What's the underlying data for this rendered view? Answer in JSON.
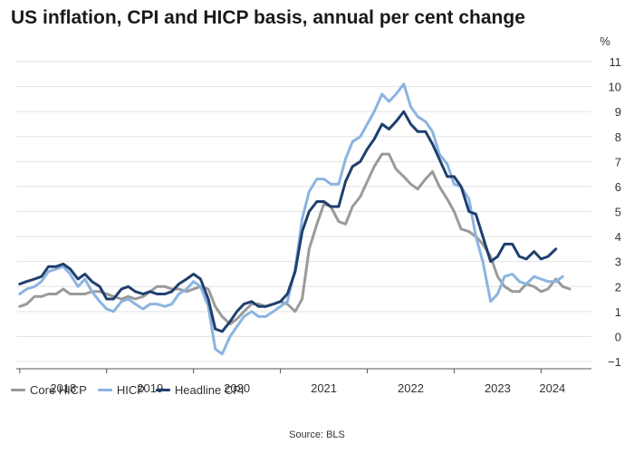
{
  "title": "US inflation, CPI and HICP basis, annual per cent change",
  "source": "Source: BLS",
  "chart_data": {
    "type": "line",
    "title": "US inflation, CPI and HICP basis, annual per cent change",
    "ylabel": "%",
    "xlabel": "",
    "ylim": [
      -1,
      11
    ],
    "yticks": [
      11,
      10,
      9,
      8,
      7,
      6,
      5,
      4,
      3,
      2,
      1,
      0,
      -1
    ],
    "xlim": [
      2017.96,
      2024.58
    ],
    "xticks": [
      {
        "label": "2018",
        "x": 2018.5
      },
      {
        "label": "2019",
        "x": 2019.5
      },
      {
        "label": "2020",
        "x": 2020.5
      },
      {
        "label": "2021",
        "x": 2021.5
      },
      {
        "label": "2022",
        "x": 2022.5
      },
      {
        "label": "2023",
        "x": 2023.5
      },
      {
        "label": "2024",
        "x": 2024.13
      }
    ],
    "grid": true,
    "legend_position": "bottom-left",
    "series": [
      {
        "name": "Core HICP",
        "color": "#9a9a9a",
        "points": [
          [
            2018.0,
            1.2
          ],
          [
            2018.08,
            1.3
          ],
          [
            2018.17,
            1.6
          ],
          [
            2018.25,
            1.6
          ],
          [
            2018.33,
            1.7
          ],
          [
            2018.42,
            1.7
          ],
          [
            2018.5,
            1.9
          ],
          [
            2018.58,
            1.7
          ],
          [
            2018.67,
            1.7
          ],
          [
            2018.75,
            1.7
          ],
          [
            2018.83,
            1.8
          ],
          [
            2018.92,
            1.8
          ],
          [
            2019.0,
            1.7
          ],
          [
            2019.08,
            1.6
          ],
          [
            2019.17,
            1.5
          ],
          [
            2019.25,
            1.6
          ],
          [
            2019.33,
            1.5
          ],
          [
            2019.42,
            1.6
          ],
          [
            2019.5,
            1.8
          ],
          [
            2019.58,
            2.0
          ],
          [
            2019.67,
            2.0
          ],
          [
            2019.75,
            1.9
          ],
          [
            2019.83,
            1.9
          ],
          [
            2019.92,
            1.8
          ],
          [
            2020.0,
            1.9
          ],
          [
            2020.08,
            2.0
          ],
          [
            2020.17,
            1.9
          ],
          [
            2020.25,
            1.2
          ],
          [
            2020.33,
            0.8
          ],
          [
            2020.42,
            0.5
          ],
          [
            2020.5,
            0.7
          ],
          [
            2020.58,
            1.0
          ],
          [
            2020.67,
            1.3
          ],
          [
            2020.75,
            1.3
          ],
          [
            2020.83,
            1.2
          ],
          [
            2020.92,
            1.3
          ],
          [
            2021.0,
            1.4
          ],
          [
            2021.08,
            1.3
          ],
          [
            2021.17,
            1.0
          ],
          [
            2021.25,
            1.5
          ],
          [
            2021.33,
            3.5
          ],
          [
            2021.42,
            4.5
          ],
          [
            2021.5,
            5.3
          ],
          [
            2021.58,
            5.2
          ],
          [
            2021.67,
            4.6
          ],
          [
            2021.75,
            4.5
          ],
          [
            2021.83,
            5.2
          ],
          [
            2021.92,
            5.6
          ],
          [
            2022.0,
            6.2
          ],
          [
            2022.08,
            6.8
          ],
          [
            2022.17,
            7.3
          ],
          [
            2022.25,
            7.3
          ],
          [
            2022.33,
            6.7
          ],
          [
            2022.42,
            6.4
          ],
          [
            2022.5,
            6.1
          ],
          [
            2022.58,
            5.9
          ],
          [
            2022.67,
            6.3
          ],
          [
            2022.75,
            6.6
          ],
          [
            2022.83,
            6.0
          ],
          [
            2022.92,
            5.5
          ],
          [
            2023.0,
            5.0
          ],
          [
            2023.08,
            4.3
          ],
          [
            2023.17,
            4.2
          ],
          [
            2023.25,
            4.0
          ],
          [
            2023.33,
            3.7
          ],
          [
            2023.42,
            3.2
          ],
          [
            2023.5,
            2.4
          ],
          [
            2023.58,
            2.0
          ],
          [
            2023.67,
            1.8
          ],
          [
            2023.75,
            1.8
          ],
          [
            2023.83,
            2.1
          ],
          [
            2023.92,
            2.0
          ],
          [
            2024.0,
            1.8
          ],
          [
            2024.08,
            1.9
          ],
          [
            2024.17,
            2.3
          ],
          [
            2024.25,
            2.0
          ],
          [
            2024.33,
            1.9
          ]
        ]
      },
      {
        "name": "HICP",
        "color": "#8bb4e0",
        "points": [
          [
            2018.0,
            1.7
          ],
          [
            2018.08,
            1.9
          ],
          [
            2018.17,
            2.0
          ],
          [
            2018.25,
            2.2
          ],
          [
            2018.33,
            2.6
          ],
          [
            2018.42,
            2.7
          ],
          [
            2018.5,
            2.8
          ],
          [
            2018.58,
            2.5
          ],
          [
            2018.67,
            2.0
          ],
          [
            2018.75,
            2.3
          ],
          [
            2018.83,
            1.8
          ],
          [
            2018.92,
            1.4
          ],
          [
            2019.0,
            1.1
          ],
          [
            2019.08,
            1.0
          ],
          [
            2019.17,
            1.4
          ],
          [
            2019.25,
            1.5
          ],
          [
            2019.33,
            1.3
          ],
          [
            2019.42,
            1.1
          ],
          [
            2019.5,
            1.3
          ],
          [
            2019.58,
            1.3
          ],
          [
            2019.67,
            1.2
          ],
          [
            2019.75,
            1.3
          ],
          [
            2019.83,
            1.7
          ],
          [
            2019.92,
            1.9
          ],
          [
            2020.0,
            2.2
          ],
          [
            2020.08,
            2.0
          ],
          [
            2020.17,
            1.2
          ],
          [
            2020.25,
            -0.5
          ],
          [
            2020.33,
            -0.7
          ],
          [
            2020.42,
            0.0
          ],
          [
            2020.5,
            0.4
          ],
          [
            2020.58,
            0.8
          ],
          [
            2020.67,
            1.0
          ],
          [
            2020.75,
            0.8
          ],
          [
            2020.83,
            0.8
          ],
          [
            2020.92,
            1.0
          ],
          [
            2021.0,
            1.2
          ],
          [
            2021.08,
            1.4
          ],
          [
            2021.17,
            2.7
          ],
          [
            2021.25,
            4.7
          ],
          [
            2021.33,
            5.8
          ],
          [
            2021.42,
            6.3
          ],
          [
            2021.5,
            6.3
          ],
          [
            2021.58,
            6.1
          ],
          [
            2021.67,
            6.1
          ],
          [
            2021.75,
            7.1
          ],
          [
            2021.83,
            7.8
          ],
          [
            2021.92,
            8.0
          ],
          [
            2022.0,
            8.5
          ],
          [
            2022.08,
            9.0
          ],
          [
            2022.17,
            9.7
          ],
          [
            2022.25,
            9.4
          ],
          [
            2022.33,
            9.7
          ],
          [
            2022.42,
            10.1
          ],
          [
            2022.5,
            9.2
          ],
          [
            2022.58,
            8.8
          ],
          [
            2022.67,
            8.6
          ],
          [
            2022.75,
            8.2
          ],
          [
            2022.83,
            7.3
          ],
          [
            2022.92,
            6.9
          ],
          [
            2023.0,
            6.1
          ],
          [
            2023.08,
            6.0
          ],
          [
            2023.17,
            5.5
          ],
          [
            2023.25,
            4.0
          ],
          [
            2023.33,
            3.0
          ],
          [
            2023.42,
            1.4
          ],
          [
            2023.5,
            1.7
          ],
          [
            2023.58,
            2.4
          ],
          [
            2023.67,
            2.5
          ],
          [
            2023.75,
            2.2
          ],
          [
            2023.83,
            2.1
          ],
          [
            2023.92,
            2.4
          ],
          [
            2024.0,
            2.3
          ],
          [
            2024.08,
            2.2
          ],
          [
            2024.17,
            2.2
          ],
          [
            2024.25,
            2.4
          ]
        ]
      },
      {
        "name": "Headline CPI",
        "color": "#1f3f6e",
        "points": [
          [
            2018.0,
            2.1
          ],
          [
            2018.08,
            2.2
          ],
          [
            2018.17,
            2.3
          ],
          [
            2018.25,
            2.4
          ],
          [
            2018.33,
            2.8
          ],
          [
            2018.42,
            2.8
          ],
          [
            2018.5,
            2.9
          ],
          [
            2018.58,
            2.7
          ],
          [
            2018.67,
            2.3
          ],
          [
            2018.75,
            2.5
          ],
          [
            2018.83,
            2.2
          ],
          [
            2018.92,
            2.0
          ],
          [
            2019.0,
            1.5
          ],
          [
            2019.08,
            1.5
          ],
          [
            2019.17,
            1.9
          ],
          [
            2019.25,
            2.0
          ],
          [
            2019.33,
            1.8
          ],
          [
            2019.42,
            1.7
          ],
          [
            2019.5,
            1.8
          ],
          [
            2019.58,
            1.7
          ],
          [
            2019.67,
            1.7
          ],
          [
            2019.75,
            1.8
          ],
          [
            2019.83,
            2.1
          ],
          [
            2019.92,
            2.3
          ],
          [
            2020.0,
            2.5
          ],
          [
            2020.08,
            2.3
          ],
          [
            2020.17,
            1.5
          ],
          [
            2020.25,
            0.3
          ],
          [
            2020.33,
            0.2
          ],
          [
            2020.42,
            0.6
          ],
          [
            2020.5,
            1.0
          ],
          [
            2020.58,
            1.3
          ],
          [
            2020.67,
            1.4
          ],
          [
            2020.75,
            1.2
          ],
          [
            2020.83,
            1.2
          ],
          [
            2020.92,
            1.3
          ],
          [
            2021.0,
            1.4
          ],
          [
            2021.08,
            1.7
          ],
          [
            2021.17,
            2.6
          ],
          [
            2021.25,
            4.2
          ],
          [
            2021.33,
            5.0
          ],
          [
            2021.42,
            5.4
          ],
          [
            2021.5,
            5.4
          ],
          [
            2021.58,
            5.2
          ],
          [
            2021.67,
            5.2
          ],
          [
            2021.75,
            6.2
          ],
          [
            2021.83,
            6.8
          ],
          [
            2021.92,
            7.0
          ],
          [
            2022.0,
            7.5
          ],
          [
            2022.08,
            7.9
          ],
          [
            2022.17,
            8.5
          ],
          [
            2022.25,
            8.3
          ],
          [
            2022.33,
            8.6
          ],
          [
            2022.42,
            9.0
          ],
          [
            2022.5,
            8.5
          ],
          [
            2022.58,
            8.2
          ],
          [
            2022.67,
            8.2
          ],
          [
            2022.75,
            7.7
          ],
          [
            2022.83,
            7.1
          ],
          [
            2022.92,
            6.4
          ],
          [
            2023.0,
            6.4
          ],
          [
            2023.08,
            6.0
          ],
          [
            2023.17,
            5.0
          ],
          [
            2023.25,
            4.9
          ],
          [
            2023.33,
            4.0
          ],
          [
            2023.42,
            3.0
          ],
          [
            2023.5,
            3.2
          ],
          [
            2023.58,
            3.7
          ],
          [
            2023.67,
            3.7
          ],
          [
            2023.75,
            3.2
          ],
          [
            2023.83,
            3.1
          ],
          [
            2023.92,
            3.4
          ],
          [
            2024.0,
            3.1
          ],
          [
            2024.08,
            3.2
          ],
          [
            2024.17,
            3.5
          ]
        ]
      }
    ]
  }
}
